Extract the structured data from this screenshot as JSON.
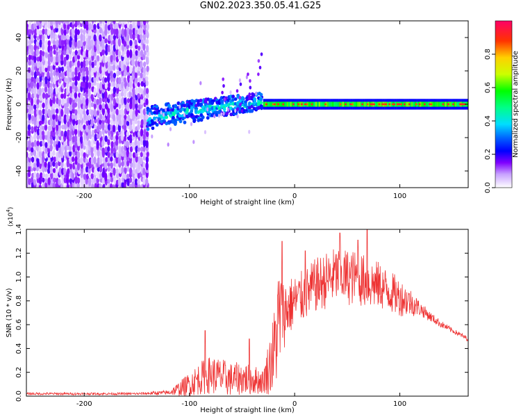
{
  "title": "GN02.2023.350.05.41.G25",
  "chart_data": [
    {
      "type": "heatmap",
      "name": "spectrogram",
      "xlabel": "Height of straight line (km)",
      "ylabel": "Frequency (Hz)",
      "xlim": [
        -255,
        165
      ],
      "ylim": [
        -50,
        50
      ],
      "xticks": [
        -200,
        -100,
        0,
        100
      ],
      "yticks": [
        -40,
        -20,
        0,
        20,
        40
      ],
      "colorbar": {
        "label": "Normalized spectral amplitude",
        "range": [
          0,
          1
        ],
        "ticks": [
          "0.0",
          "0.2",
          "0.4",
          "0.6",
          "0.8"
        ]
      },
      "features": [
        {
          "x_range": [
            -255,
            -140
          ],
          "description": "broadband noise across all frequencies"
        },
        {
          "x_range": [
            -140,
            -30
          ],
          "center_freq_hz": [
            -10,
            5
          ],
          "description": "spreading band rising toward 0 Hz"
        },
        {
          "x_range": [
            -30,
            165
          ],
          "center_freq_hz": 0,
          "description": "narrow strong line at 0 Hz"
        }
      ]
    },
    {
      "type": "line",
      "name": "snr",
      "xlabel": "Height of straight line (km)",
      "ylabel": "SNR (10 * v/v)",
      "multiplier": "(x10",
      "multiplier_exp": "4",
      "multiplier_close": ")",
      "xlim": [
        -255,
        165
      ],
      "ylim": [
        0,
        1.4
      ],
      "xticks": [
        -200,
        -100,
        0,
        100
      ],
      "yticks": [
        "0.0",
        "0.2",
        "0.4",
        "0.6",
        "0.8",
        "1.0",
        "1.2",
        "1.4"
      ],
      "color": "#ee3333",
      "series": [
        {
          "name": "SNR",
          "x": [
            -255,
            -200,
            -150,
            -120,
            -110,
            -100,
            -90,
            -80,
            -70,
            -60,
            -50,
            -40,
            -30,
            -20,
            -15,
            -10,
            -5,
            0,
            10,
            20,
            30,
            40,
            50,
            60,
            70,
            80,
            90,
            100,
            110,
            120,
            130,
            140,
            150,
            165
          ],
          "mean": [
            0.02,
            0.02,
            0.02,
            0.03,
            0.06,
            0.1,
            0.15,
            0.18,
            0.16,
            0.14,
            0.15,
            0.14,
            0.12,
            0.35,
            0.65,
            0.7,
            0.75,
            0.8,
            0.85,
            0.93,
            0.97,
            1.02,
            1.0,
            0.99,
            0.95,
            0.93,
            0.88,
            0.83,
            0.79,
            0.73,
            0.66,
            0.6,
            0.55,
            0.48
          ],
          "amp": [
            0.01,
            0.01,
            0.01,
            0.02,
            0.06,
            0.1,
            0.14,
            0.16,
            0.16,
            0.14,
            0.14,
            0.13,
            0.1,
            0.35,
            0.5,
            0.3,
            0.25,
            0.22,
            0.22,
            0.23,
            0.24,
            0.24,
            0.24,
            0.23,
            0.22,
            0.2,
            0.18,
            0.16,
            0.12,
            0.06,
            0.04,
            0.03,
            0.02,
            0.02
          ],
          "peaks": [
            [
              -85,
              0.55
            ],
            [
              -43,
              0.48
            ],
            [
              -12,
              1.3
            ],
            [
              10,
              1.22
            ],
            [
              43,
              1.37
            ],
            [
              60,
              1.31
            ],
            [
              69,
              1.42
            ]
          ]
        }
      ]
    }
  ]
}
